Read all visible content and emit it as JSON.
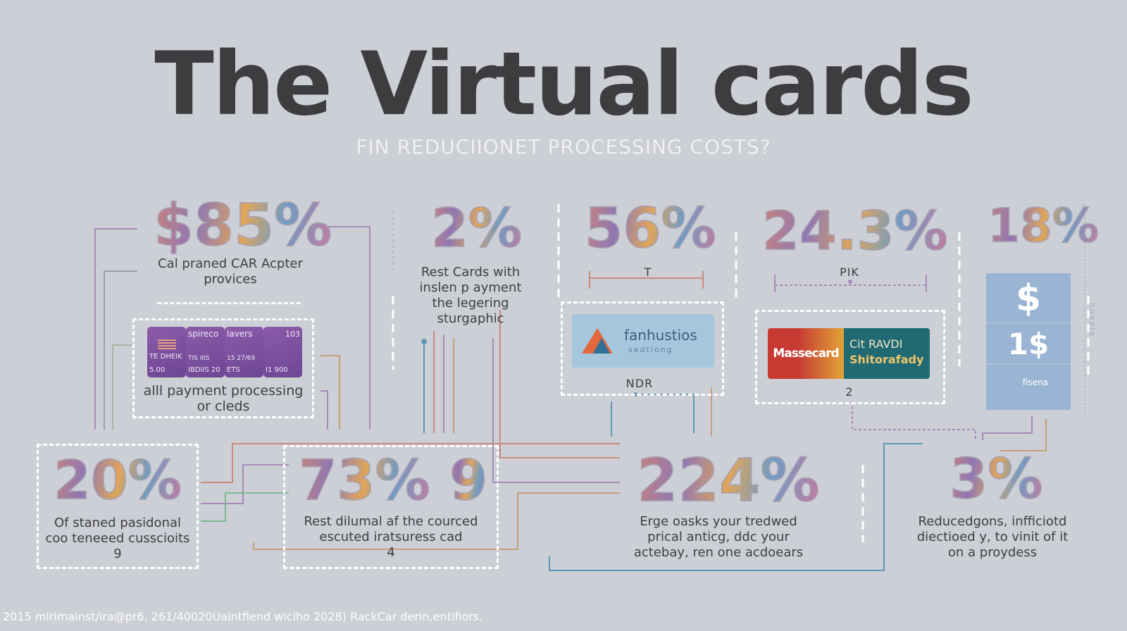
{
  "title": "The Virtual cards",
  "subtitle": "FIN REDUCIIONET PROCESSING COSTS?",
  "stats": {
    "s1": {
      "value": "$85%",
      "caption1": "Cal praned CAR Acpter",
      "caption2": "provices"
    },
    "s2": {
      "value": "2%",
      "caption1": "Rest Cards with",
      "caption2": "inslen p ayment",
      "caption3": "the legering",
      "caption4": "sturgaphic"
    },
    "s3": {
      "value": "56%",
      "label": "T"
    },
    "s4": {
      "value": "24.3%",
      "label": "PIK"
    },
    "s5": {
      "value": "18%"
    },
    "s6": {
      "value": "20%",
      "caption1": "Of staned pasidonal",
      "caption2": "coo teneeed cusscioits",
      "caption3": "9"
    },
    "s7": {
      "value": "73%",
      "value2": "9",
      "caption1": "Rest dilumal af the courced",
      "caption2": "escuted iratsuress cad",
      "caption3": "4"
    },
    "s8": {
      "value": "224%",
      "caption1": "Erge oasks your tredwed",
      "caption2": "prical anticg, ddc your",
      "caption3": "actebay, ren one acdoears"
    },
    "s9": {
      "value": "3%",
      "caption1": "Reducedgons, infficiotd",
      "caption2": "diectioed y, to vinit of it",
      "caption3": "on a proydess"
    }
  },
  "card_box": {
    "caption1": "alll payment processing",
    "caption2": "or cleds",
    "cards": [
      {
        "top": "",
        "mid": "TE DHEIK",
        "bot": "5.00"
      },
      {
        "top": "spireco",
        "mid": "TIS    IIIS",
        "bot": "IBDIIS 20"
      },
      {
        "top": "lavers",
        "mid": "15 27/69",
        "bot": "ETS"
      },
      {
        "top": "103",
        "mid": "",
        "bot": "I1    900"
      }
    ]
  },
  "logo_box": {
    "name": "fanhustios",
    "sub": "sedtiong",
    "label": "NDR"
  },
  "mc_box": {
    "left": "Massecard",
    "right1": "Cit RAVDI",
    "right2": "Shitorafady",
    "label": "2"
  },
  "blue_panel": {
    "c1": "$",
    "c2": "1$",
    "c3": "fisena",
    "side": "hoooie"
  },
  "footer": "2015 mirimainst/ira@pr6, 261/40020Uaintfiend wiciho 2028) RackCar derin,entifiors.",
  "colors": {
    "background": "#cdcfd6",
    "title": "#3d3d40",
    "dash": "#ffffff"
  }
}
